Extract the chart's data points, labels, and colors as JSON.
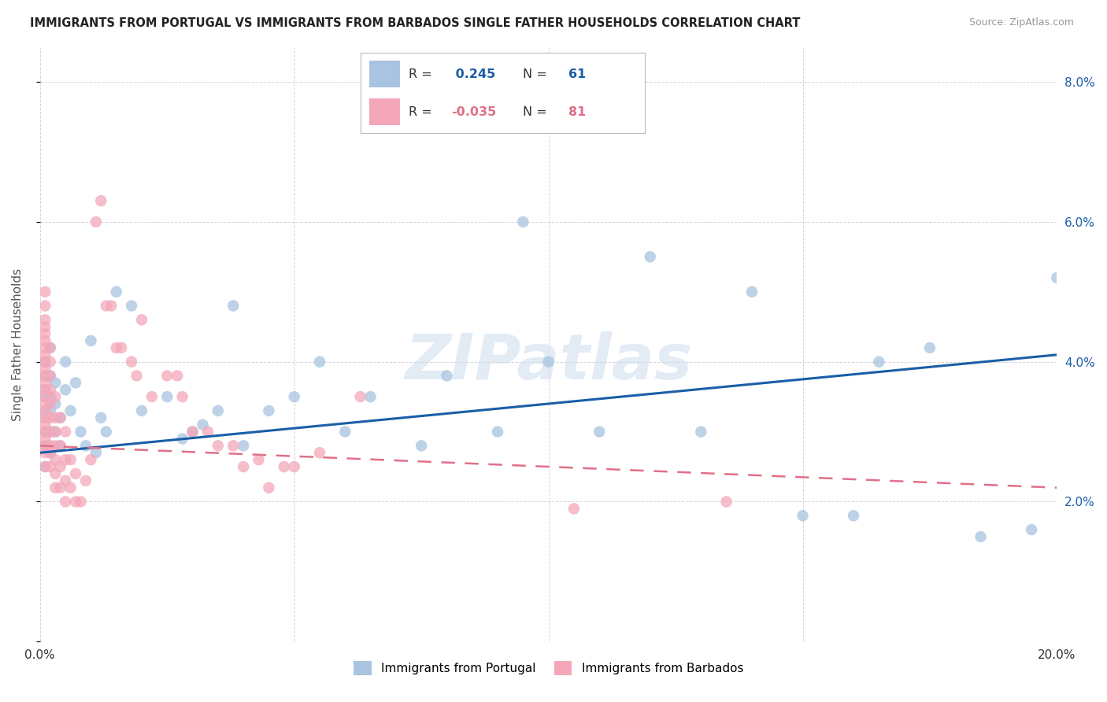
{
  "title": "IMMIGRANTS FROM PORTUGAL VS IMMIGRANTS FROM BARBADOS SINGLE FATHER HOUSEHOLDS CORRELATION CHART",
  "source": "Source: ZipAtlas.com",
  "ylabel": "Single Father Households",
  "xlabel_portugal": "Immigrants from Portugal",
  "xlabel_barbados": "Immigrants from Barbados",
  "xlim": [
    0.0,
    0.2
  ],
  "ylim": [
    0.0,
    0.085
  ],
  "xtick_vals": [
    0.0,
    0.05,
    0.1,
    0.15,
    0.2
  ],
  "xticklabels": [
    "0.0%",
    "",
    "",
    "",
    "20.0%"
  ],
  "ytick_vals": [
    0.0,
    0.02,
    0.04,
    0.06,
    0.08
  ],
  "yticklabels": [
    "",
    "2.0%",
    "4.0%",
    "6.0%",
    "8.0%"
  ],
  "R_portugal": 0.245,
  "N_portugal": 61,
  "R_barbados": -0.035,
  "N_barbados": 81,
  "color_portugal": "#a8c4e0",
  "color_barbados": "#f4a7b9",
  "line_color_portugal": "#1a5ea8",
  "line_color_barbados": "#e07088",
  "watermark": "ZIPatlas",
  "port_trend_x": [
    0.0,
    0.2
  ],
  "port_trend_y": [
    0.027,
    0.041
  ],
  "barb_trend_x": [
    0.0,
    0.2
  ],
  "barb_trend_y": [
    0.028,
    0.022
  ],
  "portugal_x": [
    0.001,
    0.001,
    0.001,
    0.001,
    0.001,
    0.001,
    0.001,
    0.001,
    0.001,
    0.002,
    0.002,
    0.002,
    0.002,
    0.002,
    0.002,
    0.003,
    0.003,
    0.003,
    0.004,
    0.004,
    0.005,
    0.005,
    0.006,
    0.007,
    0.008,
    0.009,
    0.01,
    0.011,
    0.012,
    0.013,
    0.015,
    0.018,
    0.02,
    0.025,
    0.028,
    0.03,
    0.032,
    0.035,
    0.038,
    0.04,
    0.045,
    0.05,
    0.055,
    0.06,
    0.065,
    0.075,
    0.08,
    0.09,
    0.095,
    0.1,
    0.11,
    0.12,
    0.13,
    0.14,
    0.15,
    0.16,
    0.165,
    0.175,
    0.185,
    0.195,
    0.2
  ],
  "portugal_y": [
    0.028,
    0.03,
    0.032,
    0.033,
    0.035,
    0.036,
    0.038,
    0.04,
    0.025,
    0.027,
    0.03,
    0.033,
    0.035,
    0.038,
    0.042,
    0.03,
    0.034,
    0.037,
    0.028,
    0.032,
    0.036,
    0.04,
    0.033,
    0.037,
    0.03,
    0.028,
    0.043,
    0.027,
    0.032,
    0.03,
    0.05,
    0.048,
    0.033,
    0.035,
    0.029,
    0.03,
    0.031,
    0.033,
    0.048,
    0.028,
    0.033,
    0.035,
    0.04,
    0.03,
    0.035,
    0.028,
    0.038,
    0.03,
    0.06,
    0.04,
    0.03,
    0.055,
    0.03,
    0.05,
    0.018,
    0.018,
    0.04,
    0.042,
    0.015,
    0.016,
    0.052
  ],
  "barbados_x": [
    0.001,
    0.001,
    0.001,
    0.001,
    0.001,
    0.001,
    0.001,
    0.001,
    0.001,
    0.001,
    0.001,
    0.001,
    0.001,
    0.001,
    0.001,
    0.001,
    0.001,
    0.001,
    0.001,
    0.001,
    0.001,
    0.001,
    0.001,
    0.002,
    0.002,
    0.002,
    0.002,
    0.002,
    0.002,
    0.002,
    0.002,
    0.002,
    0.002,
    0.003,
    0.003,
    0.003,
    0.003,
    0.003,
    0.003,
    0.003,
    0.004,
    0.004,
    0.004,
    0.004,
    0.005,
    0.005,
    0.005,
    0.005,
    0.006,
    0.006,
    0.007,
    0.007,
    0.008,
    0.009,
    0.01,
    0.011,
    0.012,
    0.013,
    0.014,
    0.015,
    0.016,
    0.018,
    0.019,
    0.02,
    0.022,
    0.025,
    0.027,
    0.028,
    0.03,
    0.033,
    0.035,
    0.038,
    0.04,
    0.043,
    0.045,
    0.048,
    0.05,
    0.055,
    0.063,
    0.105,
    0.135
  ],
  "barbados_y": [
    0.025,
    0.027,
    0.028,
    0.029,
    0.03,
    0.031,
    0.032,
    0.033,
    0.034,
    0.035,
    0.036,
    0.037,
    0.038,
    0.039,
    0.04,
    0.041,
    0.042,
    0.043,
    0.044,
    0.045,
    0.046,
    0.048,
    0.05,
    0.025,
    0.027,
    0.028,
    0.03,
    0.032,
    0.034,
    0.036,
    0.038,
    0.04,
    0.042,
    0.022,
    0.024,
    0.026,
    0.028,
    0.03,
    0.032,
    0.035,
    0.022,
    0.025,
    0.028,
    0.032,
    0.02,
    0.023,
    0.026,
    0.03,
    0.022,
    0.026,
    0.02,
    0.024,
    0.02,
    0.023,
    0.026,
    0.06,
    0.063,
    0.048,
    0.048,
    0.042,
    0.042,
    0.04,
    0.038,
    0.046,
    0.035,
    0.038,
    0.038,
    0.035,
    0.03,
    0.03,
    0.028,
    0.028,
    0.025,
    0.026,
    0.022,
    0.025,
    0.025,
    0.027,
    0.035,
    0.019,
    0.02
  ]
}
